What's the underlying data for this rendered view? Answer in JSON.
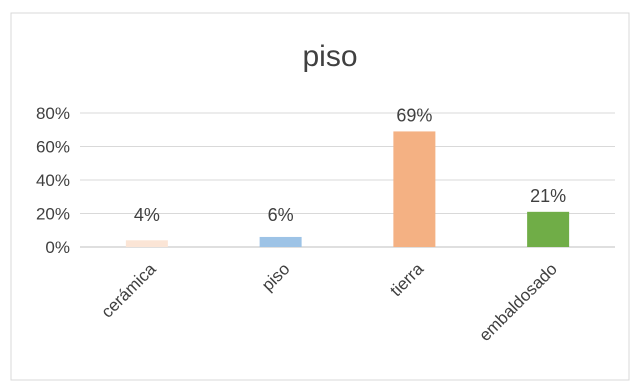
{
  "chart_data": {
    "type": "bar",
    "title": "piso",
    "xlabel": "",
    "ylabel": "",
    "categories": [
      "cerámica",
      "piso",
      "tierra",
      "embaldosado"
    ],
    "values": [
      4,
      6,
      69,
      21
    ],
    "data_labels": [
      "4%",
      "6%",
      "69%",
      "21%"
    ],
    "bar_colors": [
      "#fbe5d6",
      "#9dc3e6",
      "#f4b183",
      "#70ad47"
    ],
    "ylim": [
      0,
      80
    ],
    "yticks": [
      0,
      20,
      40,
      60,
      80
    ],
    "ytick_labels": [
      "0%",
      "20%",
      "40%",
      "60%",
      "80%"
    ],
    "grid": true,
    "legend": "none"
  }
}
